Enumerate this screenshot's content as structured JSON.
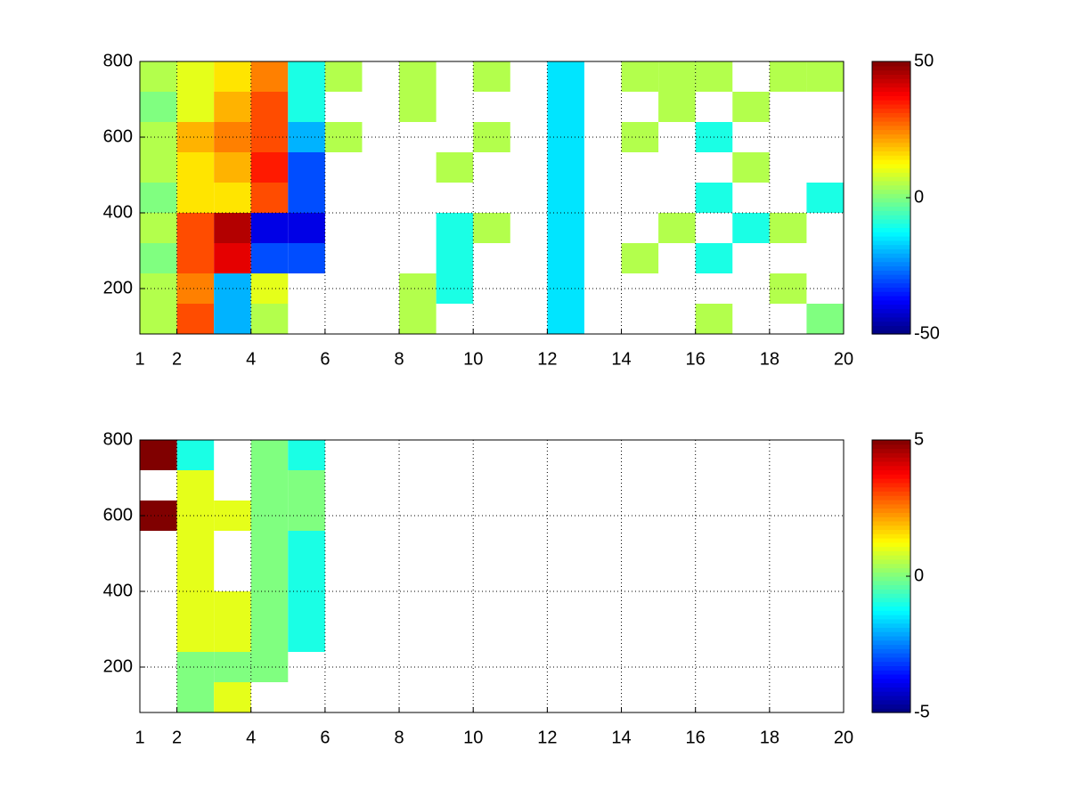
{
  "chart_data": [
    {
      "type": "heatmap",
      "colormap": "jet",
      "grid": true,
      "xlim": [
        1,
        20
      ],
      "ylim": [
        80,
        800
      ],
      "xticks": [
        1,
        2,
        4,
        6,
        8,
        10,
        12,
        14,
        16,
        18,
        20
      ],
      "yticks": [
        200,
        400,
        600,
        800
      ],
      "clim": [
        -50,
        50
      ],
      "cticks": [
        -50,
        0,
        50
      ],
      "x": [
        1.5,
        2.5,
        3.5,
        4.5,
        5.5,
        6.5,
        7.5,
        8.5,
        9.5,
        10.5,
        11.5,
        12.5,
        13.5,
        14.5,
        15.5,
        16.5,
        17.5,
        18.5,
        19.5
      ],
      "y": [
        120,
        200,
        280,
        360,
        440,
        520,
        600,
        680,
        760
      ],
      "z": [
        [
          5,
          30,
          -20,
          5,
          null,
          null,
          null,
          5,
          null,
          null,
          null,
          -15,
          null,
          null,
          null,
          5,
          null,
          null,
          0
        ],
        [
          5,
          25,
          -20,
          10,
          null,
          null,
          null,
          5,
          -10,
          null,
          null,
          -15,
          null,
          null,
          null,
          null,
          null,
          5,
          null
        ],
        [
          0,
          30,
          40,
          -30,
          -30,
          null,
          null,
          null,
          -10,
          null,
          null,
          -15,
          null,
          5,
          null,
          -10,
          null,
          null,
          null
        ],
        [
          5,
          30,
          45,
          -40,
          -40,
          null,
          null,
          null,
          -10,
          5,
          null,
          -15,
          null,
          null,
          5,
          null,
          -10,
          5,
          null
        ],
        [
          0,
          15,
          15,
          30,
          -30,
          null,
          null,
          null,
          null,
          null,
          null,
          -15,
          null,
          null,
          null,
          -10,
          null,
          null,
          -10
        ],
        [
          5,
          15,
          20,
          35,
          -30,
          null,
          null,
          null,
          5,
          null,
          null,
          -15,
          null,
          null,
          null,
          null,
          5,
          null,
          null
        ],
        [
          5,
          20,
          25,
          30,
          -20,
          5,
          null,
          null,
          null,
          5,
          null,
          -15,
          null,
          5,
          null,
          -10,
          null,
          null,
          null
        ],
        [
          0,
          10,
          20,
          30,
          -10,
          null,
          null,
          5,
          null,
          null,
          null,
          -15,
          null,
          null,
          5,
          null,
          5,
          null,
          null
        ],
        [
          5,
          10,
          15,
          25,
          -10,
          5,
          null,
          5,
          null,
          5,
          null,
          -15,
          null,
          5,
          5,
          5,
          null,
          5,
          5
        ]
      ]
    },
    {
      "type": "heatmap",
      "colormap": "jet",
      "grid": true,
      "xlim": [
        1,
        20
      ],
      "ylim": [
        80,
        800
      ],
      "xticks": [
        1,
        2,
        4,
        6,
        8,
        10,
        12,
        14,
        16,
        18,
        20
      ],
      "yticks": [
        200,
        400,
        600,
        800
      ],
      "clim": [
        -5,
        5
      ],
      "cticks": [
        -5,
        0,
        5
      ],
      "x": [
        1.5,
        2.5,
        3.5,
        4.5,
        5.5,
        6.5,
        7.5,
        8.5,
        9.5,
        10.5,
        11.5,
        12.5,
        13.5,
        14.5,
        15.5,
        16.5,
        17.5,
        18.5,
        19.5
      ],
      "y": [
        120,
        200,
        280,
        360,
        440,
        520,
        600,
        680,
        760
      ],
      "z": [
        [
          null,
          0,
          1,
          null,
          null,
          null,
          null,
          null,
          null,
          null,
          null,
          null,
          null,
          null,
          null,
          null,
          null,
          null,
          null
        ],
        [
          null,
          0,
          0,
          0,
          null,
          null,
          null,
          null,
          null,
          null,
          null,
          null,
          null,
          null,
          null,
          null,
          null,
          null,
          null
        ],
        [
          null,
          1,
          1,
          0,
          -1,
          null,
          null,
          null,
          null,
          null,
          null,
          null,
          null,
          null,
          null,
          null,
          null,
          null,
          null
        ],
        [
          null,
          1,
          1,
          0,
          -1,
          null,
          null,
          null,
          null,
          null,
          null,
          null,
          null,
          null,
          null,
          null,
          null,
          null,
          null
        ],
        [
          null,
          1,
          null,
          0,
          -1,
          null,
          null,
          null,
          null,
          null,
          null,
          null,
          null,
          null,
          null,
          null,
          null,
          null,
          null
        ],
        [
          null,
          1,
          null,
          0,
          -1,
          null,
          null,
          null,
          null,
          null,
          null,
          null,
          null,
          null,
          null,
          null,
          null,
          null,
          null
        ],
        [
          5,
          1,
          1,
          0,
          0,
          null,
          null,
          null,
          null,
          null,
          null,
          null,
          null,
          null,
          null,
          null,
          null,
          null,
          null
        ],
        [
          null,
          1,
          null,
          0,
          0,
          null,
          null,
          null,
          null,
          null,
          null,
          null,
          null,
          null,
          null,
          null,
          null,
          null,
          null
        ],
        [
          5,
          -1,
          null,
          0,
          -1,
          null,
          null,
          null,
          null,
          null,
          null,
          null,
          null,
          null,
          null,
          null,
          null,
          null,
          null
        ]
      ]
    }
  ]
}
